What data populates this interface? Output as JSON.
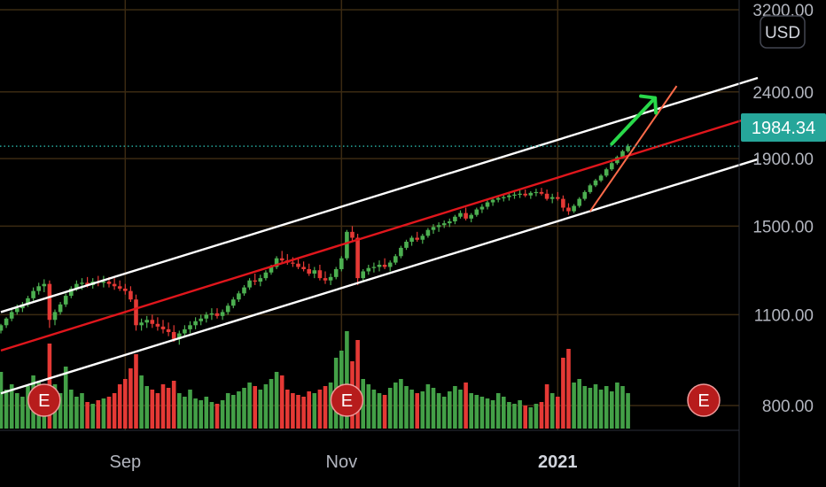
{
  "currency": {
    "label": "USD"
  },
  "last_price": {
    "label": "1984.34",
    "value": 1984.34,
    "color": "#26a69a"
  },
  "colors": {
    "up": "#4caf50",
    "down": "#e53935",
    "vol_up": "#43a047",
    "vol_down": "#e53935",
    "grid": "#3b2a12",
    "channel_outer": "#ffffff",
    "channel_mid": "#e0161c",
    "projection": "#ff6b4a",
    "arrow": "#29d94a"
  },
  "earnings_markers": [
    {
      "label": "E",
      "index": 8
    },
    {
      "label": "E",
      "index": 64
    },
    {
      "label": "E",
      "index": 130
    }
  ],
  "chart_data": {
    "type": "candlestick",
    "price_scale": "log",
    "price_range": [
      640,
      3250
    ],
    "y_ticks": [
      {
        "label": "3200.00",
        "value": 3200
      },
      {
        "label": "2400.00",
        "value": 2400
      },
      {
        "label": "1900.00",
        "value": 1900
      },
      {
        "label": "1500.00",
        "value": 1500
      },
      {
        "label": "1100.00",
        "value": 1100
      },
      {
        "label": "800.00",
        "value": 800
      }
    ],
    "x_ticks": [
      {
        "label": "Sep",
        "index": 23,
        "bold": false
      },
      {
        "label": "Nov",
        "index": 63,
        "bold": false
      },
      {
        "label": "2021",
        "index": 103,
        "bold": true
      }
    ],
    "candles": [
      [
        1040,
        1065,
        1030,
        1060,
        32
      ],
      [
        1060,
        1090,
        1050,
        1085,
        22
      ],
      [
        1085,
        1120,
        1075,
        1110,
        25
      ],
      [
        1110,
        1140,
        1100,
        1125,
        20
      ],
      [
        1125,
        1150,
        1110,
        1140,
        18
      ],
      [
        1140,
        1175,
        1130,
        1165,
        24
      ],
      [
        1165,
        1210,
        1155,
        1195,
        30
      ],
      [
        1195,
        1230,
        1180,
        1215,
        26
      ],
      [
        1215,
        1245,
        1190,
        1225,
        20
      ],
      [
        1225,
        1240,
        1050,
        1080,
        48
      ],
      [
        1080,
        1120,
        1060,
        1110,
        25
      ],
      [
        1110,
        1150,
        1100,
        1140,
        20
      ],
      [
        1140,
        1185,
        1130,
        1175,
        35
      ],
      [
        1175,
        1215,
        1165,
        1205,
        22
      ],
      [
        1205,
        1240,
        1195,
        1225,
        18
      ],
      [
        1225,
        1250,
        1200,
        1230,
        20
      ],
      [
        1230,
        1255,
        1210,
        1220,
        15
      ],
      [
        1220,
        1250,
        1205,
        1235,
        14
      ],
      [
        1235,
        1260,
        1215,
        1230,
        16
      ],
      [
        1230,
        1260,
        1210,
        1235,
        17
      ],
      [
        1235,
        1255,
        1210,
        1225,
        18
      ],
      [
        1225,
        1250,
        1200,
        1215,
        20
      ],
      [
        1215,
        1240,
        1195,
        1205,
        25
      ],
      [
        1205,
        1225,
        1180,
        1195,
        28
      ],
      [
        1195,
        1215,
        1150,
        1160,
        34
      ],
      [
        1160,
        1180,
        1040,
        1060,
        42
      ],
      [
        1060,
        1085,
        1040,
        1070,
        30
      ],
      [
        1070,
        1095,
        1050,
        1080,
        24
      ],
      [
        1080,
        1100,
        1050,
        1065,
        22
      ],
      [
        1065,
        1090,
        1040,
        1055,
        20
      ],
      [
        1055,
        1080,
        1030,
        1045,
        25
      ],
      [
        1045,
        1070,
        1020,
        1035,
        23
      ],
      [
        1035,
        1060,
        1000,
        1010,
        27
      ],
      [
        1010,
        1040,
        990,
        1030,
        20
      ],
      [
        1030,
        1060,
        1015,
        1045,
        18
      ],
      [
        1045,
        1075,
        1030,
        1060,
        22
      ],
      [
        1060,
        1090,
        1045,
        1075,
        17
      ],
      [
        1075,
        1100,
        1060,
        1085,
        16
      ],
      [
        1085,
        1110,
        1070,
        1100,
        18
      ],
      [
        1100,
        1125,
        1080,
        1105,
        15
      ],
      [
        1105,
        1125,
        1085,
        1095,
        14
      ],
      [
        1095,
        1120,
        1080,
        1110,
        16
      ],
      [
        1110,
        1145,
        1100,
        1135,
        20
      ],
      [
        1135,
        1170,
        1125,
        1160,
        19
      ],
      [
        1160,
        1195,
        1150,
        1185,
        21
      ],
      [
        1185,
        1220,
        1175,
        1210,
        23
      ],
      [
        1210,
        1250,
        1200,
        1240,
        26
      ],
      [
        1240,
        1270,
        1220,
        1235,
        24
      ],
      [
        1235,
        1265,
        1215,
        1250,
        22
      ],
      [
        1250,
        1285,
        1240,
        1275,
        25
      ],
      [
        1275,
        1310,
        1265,
        1300,
        28
      ],
      [
        1300,
        1350,
        1290,
        1340,
        32
      ],
      [
        1340,
        1375,
        1320,
        1330,
        30
      ],
      [
        1330,
        1360,
        1310,
        1320,
        22
      ],
      [
        1320,
        1345,
        1300,
        1315,
        20
      ],
      [
        1315,
        1340,
        1290,
        1300,
        19
      ],
      [
        1300,
        1325,
        1280,
        1290,
        18
      ],
      [
        1290,
        1315,
        1260,
        1270,
        21
      ],
      [
        1270,
        1300,
        1250,
        1285,
        20
      ],
      [
        1285,
        1310,
        1240,
        1250,
        22
      ],
      [
        1250,
        1280,
        1225,
        1240,
        24
      ],
      [
        1240,
        1270,
        1220,
        1255,
        26
      ],
      [
        1255,
        1300,
        1245,
        1290,
        40
      ],
      [
        1290,
        1350,
        1280,
        1340,
        44
      ],
      [
        1340,
        1480,
        1330,
        1470,
        55
      ],
      [
        1470,
        1500,
        1420,
        1440,
        38
      ],
      [
        1440,
        1460,
        1220,
        1250,
        50
      ],
      [
        1250,
        1290,
        1240,
        1280,
        28
      ],
      [
        1280,
        1310,
        1265,
        1295,
        25
      ],
      [
        1295,
        1320,
        1275,
        1300,
        22
      ],
      [
        1300,
        1330,
        1280,
        1310,
        20
      ],
      [
        1310,
        1340,
        1290,
        1300,
        19
      ],
      [
        1300,
        1330,
        1280,
        1320,
        23
      ],
      [
        1320,
        1360,
        1310,
        1350,
        26
      ],
      [
        1350,
        1400,
        1340,
        1390,
        28
      ],
      [
        1390,
        1430,
        1380,
        1420,
        24
      ],
      [
        1420,
        1450,
        1400,
        1440,
        22
      ],
      [
        1440,
        1470,
        1420,
        1430,
        20
      ],
      [
        1430,
        1460,
        1410,
        1450,
        21
      ],
      [
        1450,
        1490,
        1440,
        1480,
        25
      ],
      [
        1480,
        1510,
        1460,
        1495,
        23
      ],
      [
        1495,
        1520,
        1470,
        1505,
        20
      ],
      [
        1505,
        1530,
        1490,
        1515,
        18
      ],
      [
        1515,
        1540,
        1495,
        1525,
        21
      ],
      [
        1525,
        1560,
        1510,
        1550,
        24
      ],
      [
        1550,
        1585,
        1540,
        1570,
        22
      ],
      [
        1570,
        1600,
        1530,
        1540,
        26
      ],
      [
        1540,
        1570,
        1520,
        1560,
        20
      ],
      [
        1560,
        1600,
        1550,
        1590,
        19
      ],
      [
        1590,
        1620,
        1570,
        1605,
        18
      ],
      [
        1605,
        1640,
        1590,
        1630,
        17
      ],
      [
        1630,
        1660,
        1610,
        1645,
        16
      ],
      [
        1645,
        1670,
        1630,
        1655,
        20
      ],
      [
        1655,
        1680,
        1635,
        1660,
        18
      ],
      [
        1660,
        1685,
        1640,
        1670,
        15
      ],
      [
        1670,
        1695,
        1650,
        1675,
        14
      ],
      [
        1675,
        1700,
        1655,
        1680,
        16
      ],
      [
        1680,
        1705,
        1660,
        1670,
        13
      ],
      [
        1670,
        1695,
        1650,
        1685,
        12
      ],
      [
        1685,
        1710,
        1665,
        1690,
        14
      ],
      [
        1690,
        1715,
        1670,
        1680,
        15
      ],
      [
        1680,
        1705,
        1640,
        1650,
        25
      ],
      [
        1650,
        1680,
        1625,
        1660,
        20
      ],
      [
        1660,
        1690,
        1640,
        1650,
        18
      ],
      [
        1650,
        1670,
        1580,
        1600,
        40
      ],
      [
        1600,
        1625,
        1560,
        1580,
        45
      ],
      [
        1580,
        1620,
        1570,
        1610,
        26
      ],
      [
        1610,
        1660,
        1600,
        1650,
        28
      ],
      [
        1650,
        1700,
        1640,
        1690,
        24
      ],
      [
        1690,
        1740,
        1680,
        1730,
        23
      ],
      [
        1730,
        1770,
        1720,
        1760,
        25
      ],
      [
        1760,
        1800,
        1750,
        1790,
        22
      ],
      [
        1790,
        1840,
        1780,
        1830,
        24
      ],
      [
        1830,
        1880,
        1820,
        1870,
        21
      ],
      [
        1870,
        1920,
        1860,
        1910,
        26
      ],
      [
        1910,
        1960,
        1900,
        1950,
        24
      ],
      [
        1950,
        2000,
        1940,
        1984.34,
        20
      ]
    ],
    "channel_lines": [
      {
        "name": "",
        "role": "outer",
        "points": [
          [
            0,
            1110
          ],
          [
            140,
            2520
          ]
        ]
      },
      {
        "name": "",
        "role": "mid",
        "points": [
          [
            0,
            970
          ],
          [
            140,
            2210
          ]
        ]
      },
      {
        "name": "",
        "role": "outer",
        "points": [
          [
            0,
            835
          ],
          [
            140,
            1895
          ]
        ]
      }
    ],
    "projection_line": {
      "points": [
        [
          109,
          1580
        ],
        [
          125,
          2450
        ]
      ]
    },
    "projection_arrow": {
      "points": [
        [
          113,
          2000
        ],
        [
          121,
          2350
        ]
      ]
    }
  }
}
